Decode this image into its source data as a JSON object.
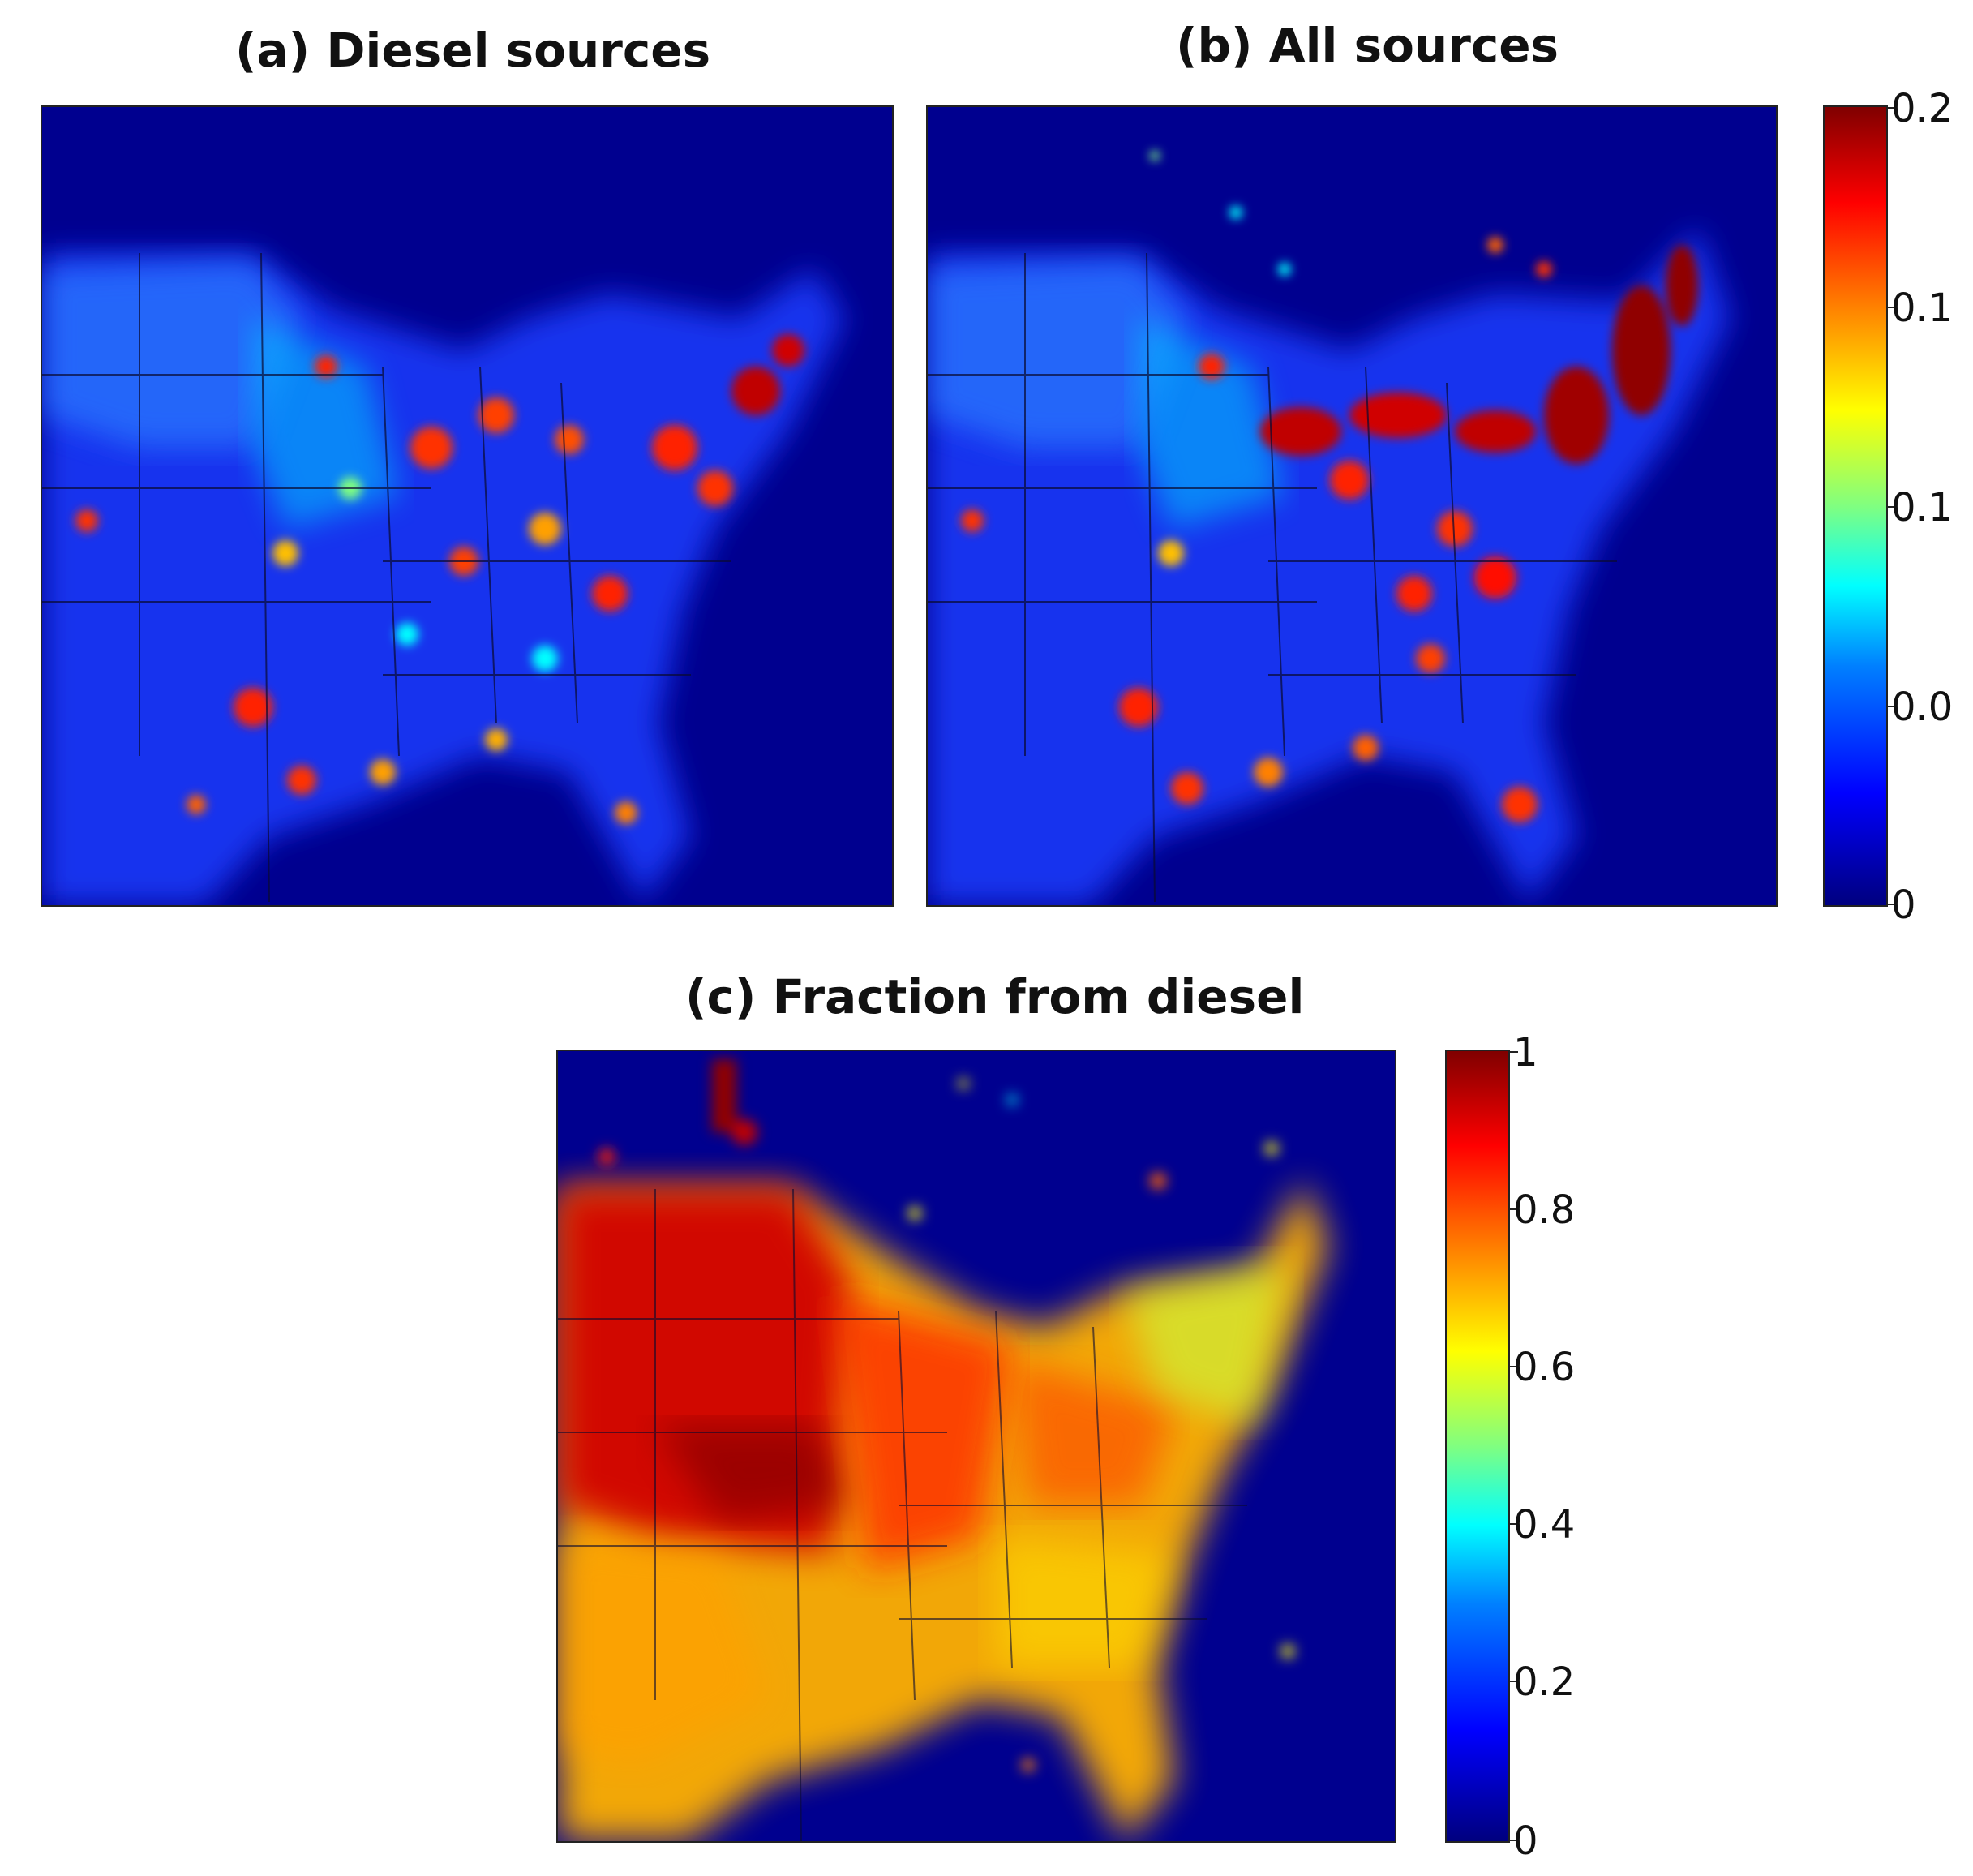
{
  "panels": {
    "a": {
      "title": "(a) Diesel sources"
    },
    "b": {
      "title": "(b) All sources"
    },
    "c": {
      "title": "(c) Fraction from diesel"
    }
  },
  "colorbar_top": {
    "ticks": [
      "0.2",
      "0.1 ",
      "0.1",
      "0.0",
      "0"
    ],
    "tick_values": [
      0.2,
      0.15,
      0.1,
      0.05,
      0
    ],
    "range": [
      0,
      0.2
    ],
    "colormap": "jet"
  },
  "colorbar_bottom": {
    "ticks": [
      "1",
      "0.8",
      "0.6",
      "0.4",
      "0.2",
      "0"
    ],
    "tick_values": [
      1,
      0.8,
      0.6,
      0.4,
      0.2,
      0
    ],
    "range": [
      0,
      1
    ],
    "colormap": "jet"
  },
  "colors": {
    "background_ocean": "#00008f",
    "low": "#0000ff",
    "mid": "#00ffff",
    "high": "#ff0000",
    "max": "#800000"
  }
}
